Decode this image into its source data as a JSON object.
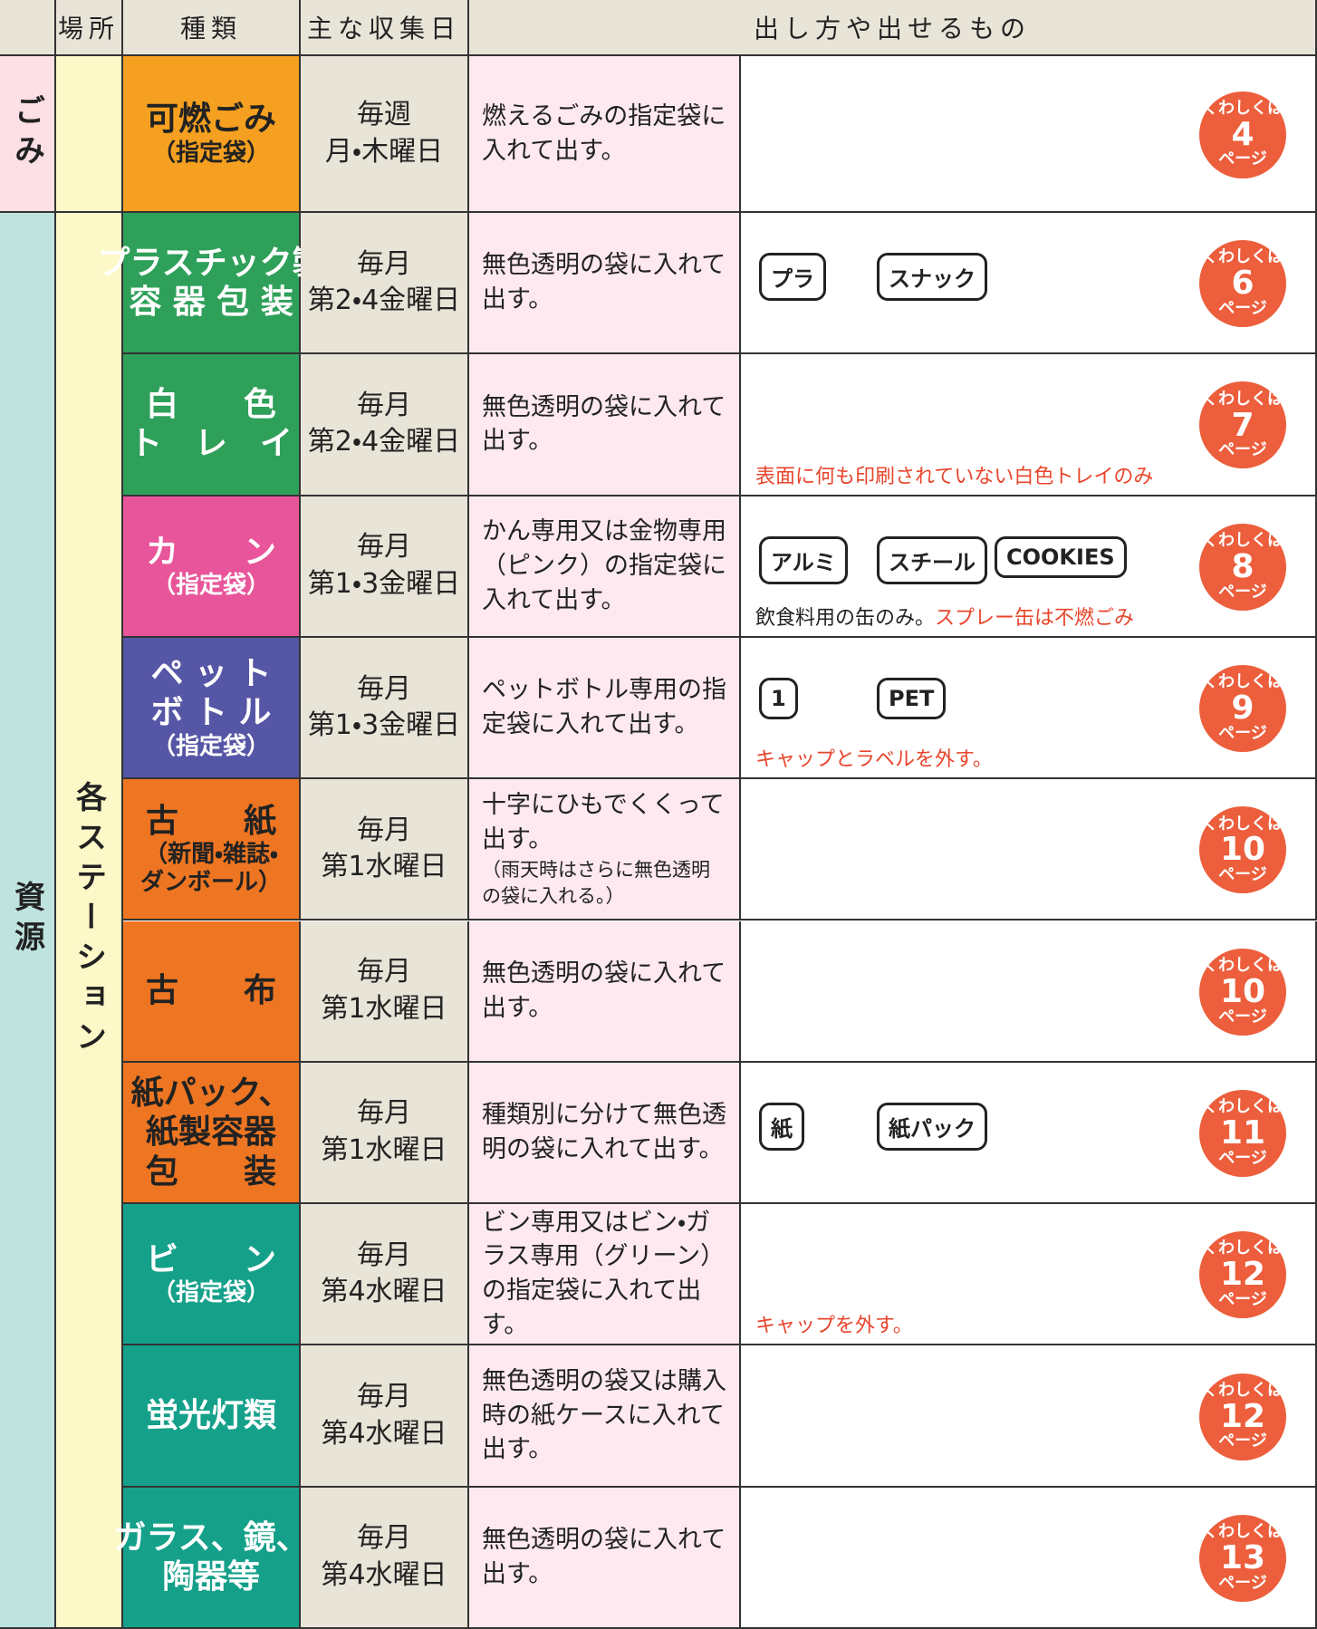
{
  "header": {
    "place": "場所",
    "type": "種類",
    "day": "主な収集日",
    "method": "出し方や出せるもの"
  },
  "groups": [
    {
      "label": "ごみ",
      "rows": 1,
      "color": "#fde0e6"
    },
    {
      "label": "資源",
      "rows": 10,
      "color": "#bfe4df"
    }
  ],
  "location": "各ステーション",
  "rows": [
    {
      "type": [
        "可燃ごみ",
        "（指定袋）"
      ],
      "color": "#f5a020",
      "text_color": "#222222",
      "day": [
        "毎週",
        "月・木曜日"
      ],
      "method": "燃えるごみの指定袋に入れて出す。",
      "badge": {
        "pre": "くわしくは",
        "page": "4",
        "post": "ページ"
      }
    },
    {
      "type": [
        "プラスチック製",
        "容 器 包 装"
      ],
      "color": "#2fa05a",
      "text_color": "#ffffff",
      "day": [
        "毎月",
        "第2・4金曜日"
      ],
      "method": "無色透明の袋に入れて出す。",
      "icons": [
        "プラ",
        "スナック"
      ],
      "badge": {
        "pre": "くわしくは",
        "page": "6",
        "post": "ページ"
      }
    },
    {
      "type": [
        "白　　色",
        "ト　レ　イ"
      ],
      "color": "#2fa05a",
      "text_color": "#ffffff",
      "day": [
        "毎月",
        "第2・4金曜日"
      ],
      "method": "無色透明の袋に入れて出す。",
      "notes": [
        {
          "text": "表面に何も印刷されていない白色トレイのみ",
          "red": true
        }
      ],
      "badge": {
        "pre": "くわしくは",
        "page": "7",
        "post": "ページ"
      }
    },
    {
      "type": [
        "カ　　ン",
        "（指定袋）"
      ],
      "color": "#e8559a",
      "text_color": "#ffffff",
      "day": [
        "毎月",
        "第1・3金曜日"
      ],
      "method": "かん専用又は金物専用（ピンク）の指定袋に入れて出す。",
      "icons": [
        "アルミ",
        "スチール",
        "COOKIES"
      ],
      "notes": [
        {
          "text": "飲食料用の缶のみ。",
          "red": false
        },
        {
          "text": "スプレー缶は不燃ごみ",
          "red": true
        }
      ],
      "badge": {
        "pre": "くわしくは",
        "page": "8",
        "post": "ページ"
      }
    },
    {
      "type": [
        "ペ ッ ト",
        "ボ ト ル",
        "（指定袋）"
      ],
      "color": "#5656a6",
      "text_color": "#ffffff",
      "day": [
        "毎月",
        "第1・3金曜日"
      ],
      "method": "ペットボトル専用の指定袋に入れて出す。",
      "icons": [
        "1",
        "PET"
      ],
      "notes": [
        {
          "text": "キャップとラベルを外す。",
          "red": true
        }
      ],
      "badge": {
        "pre": "くわしくは",
        "page": "9",
        "post": "ページ"
      }
    },
    {
      "type": [
        "古　　紙",
        "（新聞・雑誌・",
        "ダンボール）"
      ],
      "color": "#ee7622",
      "text_color": "#222222",
      "day": [
        "毎月",
        "第1水曜日"
      ],
      "method": "十字にひもでくくって出す。",
      "method_small": "（雨天時はさらに無色透明の袋に入れる。）",
      "badge": {
        "pre": "くわしくは",
        "page": "10",
        "post": "ページ"
      }
    },
    {
      "type": [
        "古　　布"
      ],
      "color": "#ee7622",
      "text_color": "#222222",
      "day": [
        "毎月",
        "第1水曜日"
      ],
      "method": "無色透明の袋に入れて出す。",
      "badge": {
        "pre": "くわしくは",
        "page": "10",
        "post": "ページ"
      }
    },
    {
      "type": [
        "紙パック、",
        "紙製容器",
        "包　　装"
      ],
      "color": "#ee7622",
      "text_color": "#222222",
      "day": [
        "毎月",
        "第1水曜日"
      ],
      "method": "種類別に分けて無色透明の袋に入れて出す。",
      "icons": [
        "紙",
        "紙パック"
      ],
      "badge": {
        "pre": "くわしくは",
        "page": "11",
        "post": "ページ"
      }
    },
    {
      "type": [
        "ビ　　ン",
        "（指定袋）"
      ],
      "color": "#15a08a",
      "text_color": "#ffffff",
      "day": [
        "毎月",
        "第4水曜日"
      ],
      "method": "ビン専用又はビン・ガラス専用（グリーン）の指定袋に入れて出す。",
      "notes": [
        {
          "text": "キャップを外す。",
          "red": true
        }
      ],
      "badge": {
        "pre": "くわしくは",
        "page": "12",
        "post": "ページ"
      }
    },
    {
      "type": [
        "蛍光灯類"
      ],
      "color": "#15a08a",
      "text_color": "#ffffff",
      "day": [
        "毎月",
        "第4水曜日"
      ],
      "method": "無色透明の袋又は購入時の紙ケースに入れて出す。",
      "badge": {
        "pre": "くわしくは",
        "page": "12",
        "post": "ページ"
      }
    },
    {
      "type": [
        "ガラス、鏡、",
        "陶器等"
      ],
      "color": "#15a08a",
      "text_color": "#ffffff",
      "day": [
        "毎月",
        "第4水曜日"
      ],
      "method": "無色透明の袋に入れて出す。",
      "badge": {
        "pre": "くわしくは",
        "page": "13",
        "post": "ページ"
      }
    }
  ]
}
